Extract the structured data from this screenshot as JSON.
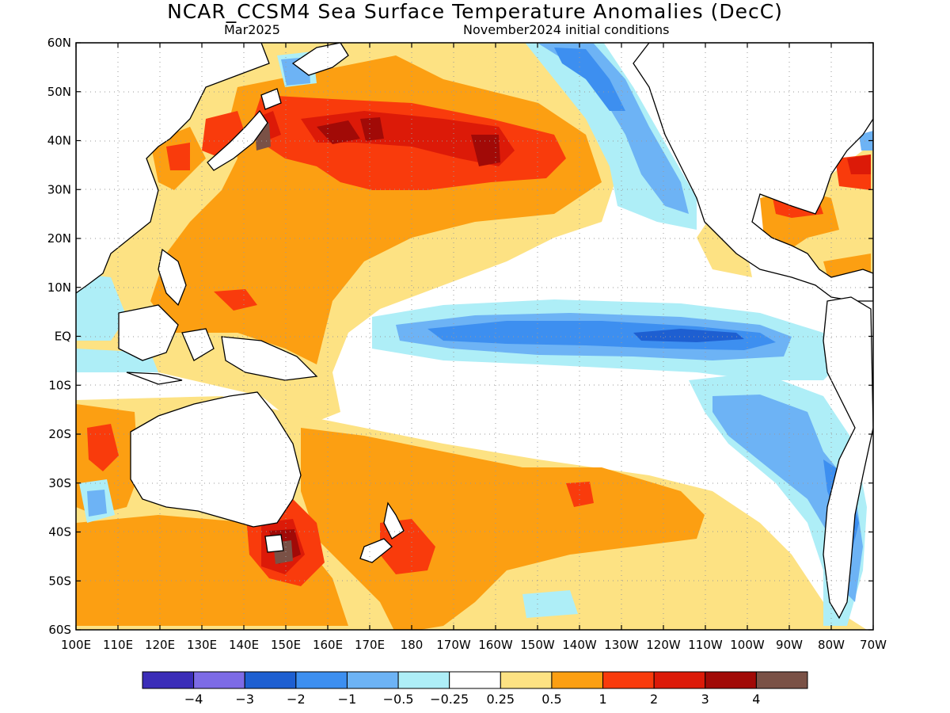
{
  "header": {
    "title": "NCAR_CCSM4 Sea Surface Temperature Anomalies (DecC)",
    "valid_month": "Mar2025",
    "init_conditions": "November2024 initial conditions"
  },
  "axes": {
    "lat_labels": [
      "60N",
      "50N",
      "40N",
      "30N",
      "20N",
      "10N",
      "EQ",
      "10S",
      "20S",
      "30S",
      "40S",
      "50S",
      "60S"
    ],
    "lon_labels": [
      "100E",
      "110E",
      "120E",
      "130E",
      "140E",
      "150E",
      "160E",
      "170E",
      "180",
      "170W",
      "160W",
      "150W",
      "140W",
      "130W",
      "120W",
      "110W",
      "100W",
      "90W",
      "80W",
      "70W"
    ],
    "lat_range": [
      -60,
      60
    ],
    "lon_range_east": [
      100,
      290
    ],
    "grid": "dotted"
  },
  "colorbar": {
    "colors": [
      "#3b2db8",
      "#7d6be6",
      "#1e5fd1",
      "#3d8ff0",
      "#6db3f5",
      "#aeeef7",
      "#ffffff",
      "#fde283",
      "#fc9f12",
      "#f93b0c",
      "#dc1a08",
      "#a10a07",
      "#7a5146"
    ],
    "labels": [
      "−4",
      "−3",
      "−2",
      "−1",
      "−0.5",
      "−0.25",
      "0.25",
      "0.5",
      "1",
      "2",
      "3",
      "4"
    ]
  },
  "palette": {
    "land": "#ffffff",
    "coast": "#000000",
    "grid": "#9a9a9a"
  }
}
